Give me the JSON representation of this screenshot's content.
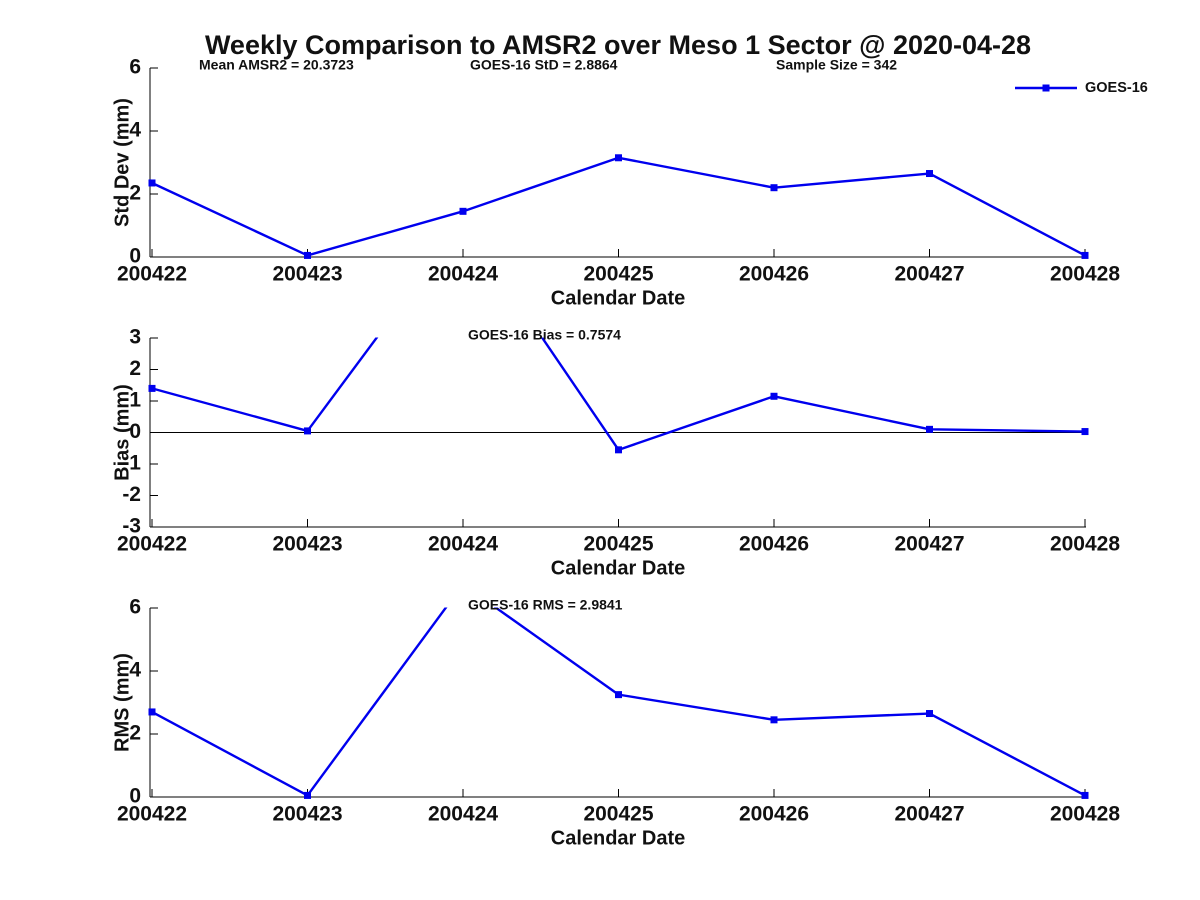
{
  "title": "Weekly Comparison to AMSR2 over Meso 1 Sector @ 2020-04-28",
  "legend": {
    "label": "GOES-16"
  },
  "colors": {
    "series": "#0000EE",
    "axis": "#000000",
    "text": "#111111",
    "background": "#FFFFFF"
  },
  "chart_data": [
    {
      "type": "line",
      "title": "",
      "categories": [
        "200422",
        "200423",
        "200424",
        "200425",
        "200426",
        "200427",
        "200428"
      ],
      "series": [
        {
          "name": "GOES-16",
          "values": [
            2.35,
            0.05,
            1.45,
            3.15,
            2.2,
            2.65,
            0.05
          ]
        }
      ],
      "xlabel": "Calendar Date",
      "ylabel": "Std Dev (mm)",
      "ylim": [
        0,
        6
      ],
      "yticks": [
        0,
        2,
        4,
        6
      ],
      "grid": false,
      "zero_line": false,
      "legend_position": "top-right",
      "annotations": [
        {
          "text": "Mean AMSR2 = 20.3723"
        },
        {
          "text": "GOES-16 StD = 2.8864"
        },
        {
          "text": "Sample Size = 342"
        }
      ]
    },
    {
      "type": "line",
      "title": "",
      "categories": [
        "200422",
        "200423",
        "200424",
        "200425",
        "200426",
        "200427",
        "200428"
      ],
      "series": [
        {
          "name": "GOES-16",
          "values": [
            1.4,
            0.05,
            6.7,
            -0.55,
            1.15,
            0.1,
            0.03
          ]
        }
      ],
      "xlabel": "Calendar Date",
      "ylabel": "Bias (mm)",
      "ylim": [
        -3,
        3
      ],
      "yticks": [
        -3,
        -2,
        -1,
        0,
        1,
        2,
        3
      ],
      "grid": false,
      "zero_line": true,
      "clipped_note": "value at 200424 exceeds axis maximum and is clipped",
      "annotations": [
        {
          "text": "GOES-16 Bias  = 0.7574"
        }
      ]
    },
    {
      "type": "line",
      "title": "",
      "categories": [
        "200422",
        "200423",
        "200424",
        "200425",
        "200426",
        "200427",
        "200428"
      ],
      "series": [
        {
          "name": "GOES-16",
          "values": [
            2.7,
            0.05,
            6.75,
            3.25,
            2.45,
            2.65,
            0.05
          ]
        }
      ],
      "xlabel": "Calendar Date",
      "ylabel": "RMS (mm)",
      "ylim": [
        0,
        6
      ],
      "yticks": [
        0,
        2,
        4,
        6
      ],
      "grid": false,
      "zero_line": false,
      "clipped_note": "value at 200424 exceeds axis maximum and is clipped",
      "annotations": [
        {
          "text": "GOES-16 RMS = 2.9841"
        }
      ]
    }
  ]
}
